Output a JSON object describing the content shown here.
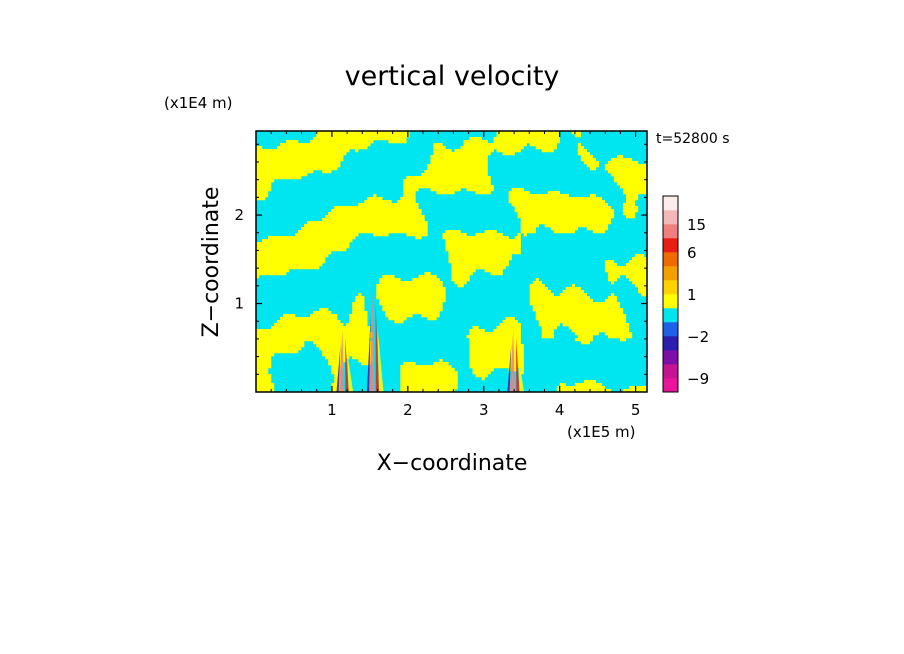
{
  "chart_data": {
    "type": "heatmap",
    "title": "vertical velocity",
    "xlabel": "X−coordinate",
    "ylabel": "Z−coordinate",
    "x_unit": "(x1E5 m)",
    "y_unit": "(x1E4 m)",
    "time_label": "t=52800 s",
    "xlim": [
      0,
      5.15
    ],
    "ylim": [
      0,
      2.95
    ],
    "x_ticks": [
      {
        "value": 1,
        "label": "1"
      },
      {
        "value": 2,
        "label": "2"
      },
      {
        "value": 3,
        "label": "3"
      },
      {
        "value": 4,
        "label": "4"
      },
      {
        "value": 5,
        "label": "5"
      }
    ],
    "y_ticks": [
      {
        "value": 1,
        "label": "1"
      },
      {
        "value": 2,
        "label": "2"
      }
    ],
    "colorbar": {
      "levels": [
        {
          "from": -12,
          "to": -9,
          "color": "#e8149a"
        },
        {
          "from": -9,
          "to": -6,
          "color": "#c41491"
        },
        {
          "from": -6,
          "to": -4,
          "color": "#7b0fa8"
        },
        {
          "from": -4,
          "to": -2,
          "color": "#2c1fb0"
        },
        {
          "from": -2,
          "to": -1,
          "color": "#1e60e6"
        },
        {
          "from": -1,
          "to": 0,
          "color": "#00e6f0"
        },
        {
          "from": 0,
          "to": 1,
          "color": "#ffff00"
        },
        {
          "from": 1,
          "to": 2,
          "color": "#ffd200"
        },
        {
          "from": 2,
          "to": 4,
          "color": "#f2a000"
        },
        {
          "from": 4,
          "to": 6,
          "color": "#f06a00"
        },
        {
          "from": 6,
          "to": 10,
          "color": "#e81e10"
        },
        {
          "from": 10,
          "to": 15,
          "color": "#f08080"
        },
        {
          "from": 15,
          "to": 20,
          "color": "#f5b8b8"
        },
        {
          "from": 20,
          "to": 25,
          "color": "#fcecec"
        }
      ],
      "tick_labels": [
        {
          "value": 15,
          "label": "15"
        },
        {
          "value": 6,
          "label": "6"
        },
        {
          "value": 1,
          "label": "1"
        },
        {
          "value": -2,
          "label": "−2"
        },
        {
          "value": -9,
          "label": "−9"
        }
      ]
    },
    "field": {
      "dominant_colors": [
        "#00e6f0",
        "#ffff00"
      ],
      "description_kind": "banded positive/negative vertical velocity pattern with localized strong updraft columns",
      "updraft_columns_x": [
        1.15,
        1.55,
        3.4
      ]
    }
  }
}
